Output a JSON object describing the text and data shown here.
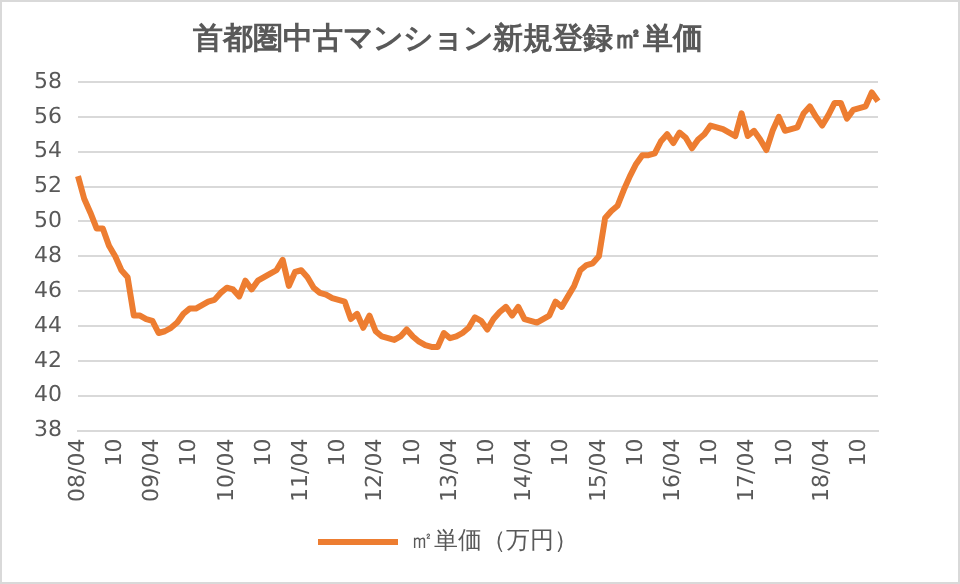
{
  "chart_data": {
    "type": "line",
    "title": "首都圏中古マンション新規登録㎡単価",
    "categories": [
      "08/04",
      null,
      null,
      null,
      null,
      null,
      "10",
      null,
      null,
      null,
      null,
      null,
      "09/04",
      null,
      null,
      null,
      null,
      null,
      "10",
      null,
      null,
      null,
      null,
      null,
      "10/04",
      null,
      null,
      null,
      null,
      null,
      "10",
      null,
      null,
      null,
      null,
      null,
      "11/04",
      null,
      null,
      null,
      null,
      null,
      "10",
      null,
      null,
      null,
      null,
      null,
      "12/04",
      null,
      null,
      null,
      null,
      null,
      "10",
      null,
      null,
      null,
      null,
      null,
      "13/04",
      null,
      null,
      null,
      null,
      null,
      "10",
      null,
      null,
      null,
      null,
      null,
      "14/04",
      null,
      null,
      null,
      null,
      null,
      "10",
      null,
      null,
      null,
      null,
      null,
      "15/04",
      null,
      null,
      null,
      null,
      null,
      "10",
      null,
      null,
      null,
      null,
      null,
      "16/04",
      null,
      null,
      null,
      null,
      null,
      "10",
      null,
      null,
      null,
      null,
      null,
      "17/04",
      null,
      null,
      null,
      null,
      null,
      "10",
      null,
      null,
      null,
      null,
      null,
      "18/04",
      null,
      null,
      null,
      null,
      null,
      "10",
      null,
      null,
      null
    ],
    "series": [
      {
        "name": "㎡単価（万円）",
        "color": "#ed7d31",
        "values": [
          52.6,
          51.3,
          50.5,
          49.6,
          49.6,
          48.6,
          48.0,
          47.2,
          46.8,
          44.6,
          44.6,
          44.4,
          44.3,
          43.6,
          43.7,
          43.9,
          44.2,
          44.7,
          45.0,
          45.0,
          45.2,
          45.4,
          45.5,
          45.9,
          46.2,
          46.1,
          45.7,
          46.6,
          46.1,
          46.6,
          46.8,
          47.0,
          47.2,
          47.8,
          46.3,
          47.1,
          47.2,
          46.8,
          46.2,
          45.9,
          45.8,
          45.6,
          45.5,
          45.4,
          44.4,
          44.7,
          43.9,
          44.6,
          43.7,
          43.4,
          43.3,
          43.2,
          43.4,
          43.8,
          43.4,
          43.1,
          42.9,
          42.8,
          42.8,
          43.6,
          43.3,
          43.4,
          43.6,
          43.9,
          44.5,
          44.3,
          43.8,
          44.4,
          44.8,
          45.1,
          44.6,
          45.1,
          44.4,
          44.3,
          44.2,
          44.4,
          44.6,
          45.4,
          45.1,
          45.7,
          46.3,
          47.2,
          47.5,
          47.6,
          48.0,
          50.2,
          50.6,
          50.9,
          51.8,
          52.6,
          53.3,
          53.8,
          53.8,
          53.9,
          54.6,
          55.0,
          54.5,
          55.1,
          54.8,
          54.2,
          54.7,
          55.0,
          55.5,
          55.4,
          55.3,
          55.1,
          54.9,
          56.2,
          54.9,
          55.2,
          54.7,
          54.1,
          55.2,
          56.0,
          55.2,
          55.3,
          55.4,
          56.2,
          56.6,
          56.0,
          55.5,
          56.1,
          56.8,
          56.8,
          55.9,
          56.4,
          56.5,
          56.6,
          57.4,
          56.9
        ]
      }
    ],
    "ylim": [
      38,
      58
    ],
    "yticks": [
      38,
      40,
      42,
      44,
      46,
      48,
      50,
      52,
      54,
      56,
      58
    ],
    "grid": "y",
    "legend": "bottom",
    "marker": "none",
    "line_style": "solid"
  }
}
